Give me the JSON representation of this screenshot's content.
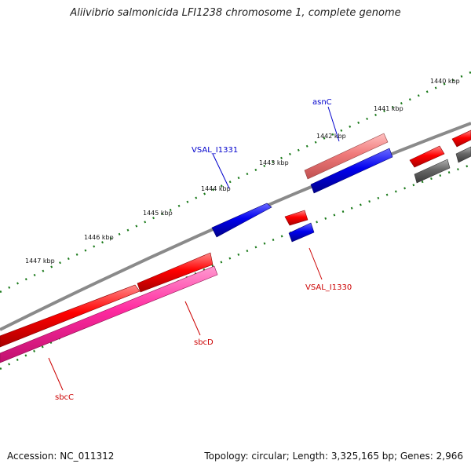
{
  "title": "Aliivibrio salmonicida LFI1238 chromosome 1, complete genome",
  "footer": {
    "accession": "Accession: NC_011312",
    "stats": "Topology: circular; Length: 3,325,165 bp; Genes: 2,966"
  },
  "ticks": [
    "1440 kbp",
    "1441 kbp",
    "1442 kbp",
    "1443 kbp",
    "1444 kbp",
    "1445 kbp",
    "1446 kbp",
    "1447 kbp"
  ],
  "genes": {
    "asnC": "asnC",
    "vsal_i1331": "VSAL_I1331",
    "vsal_i1330": "VSAL_I1330",
    "sbcD": "sbcD",
    "sbcC": "sbcC"
  },
  "colors": {
    "forward_cds": "#ff0000",
    "reverse_cds": "#0000ee",
    "hypothetical": "#666666",
    "sbcD_fill": "#ff2aa0",
    "asnC_fill": "#f07a7a",
    "backbone": "#8a8a8a",
    "ticks": "#1a7a1a",
    "label_blue": "#0000cc",
    "label_red": "#cc0000"
  }
}
